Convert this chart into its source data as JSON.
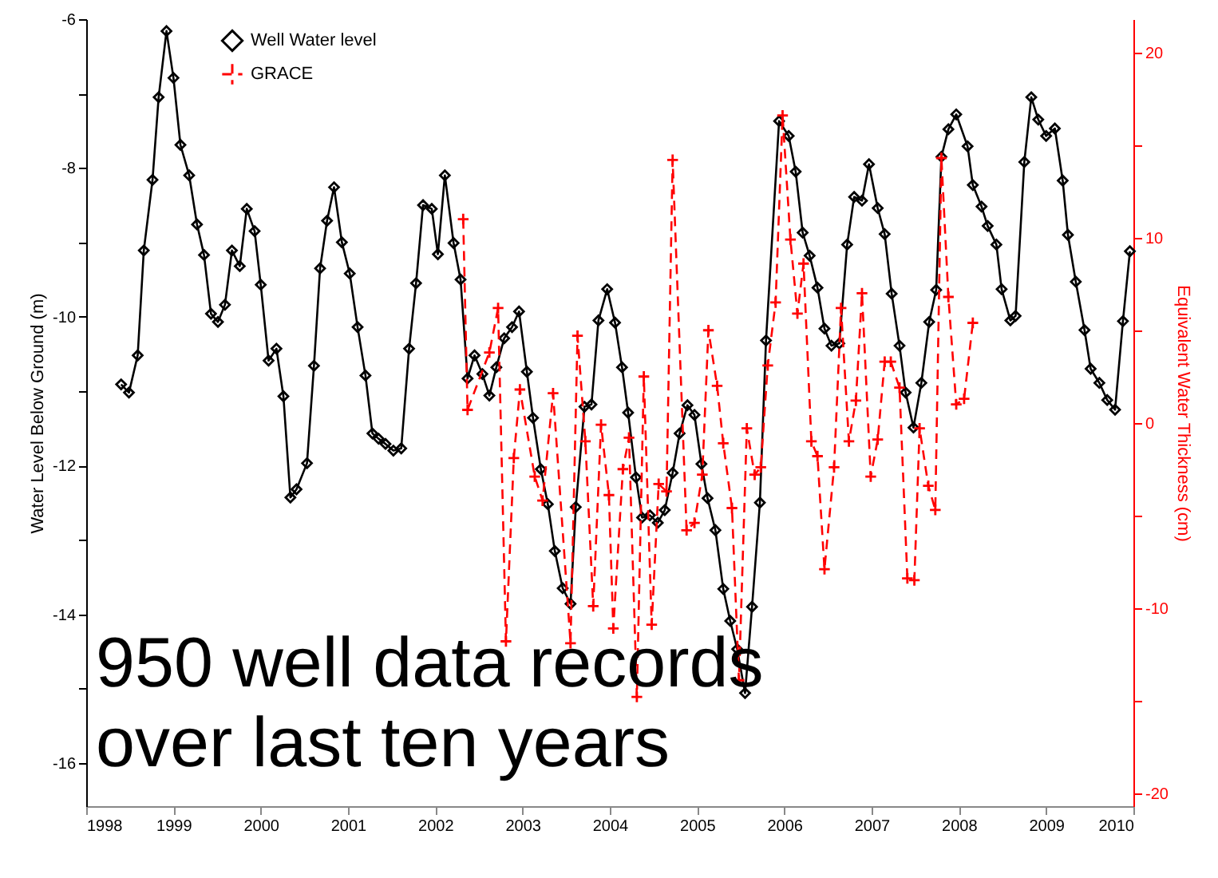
{
  "chart_data": {
    "type": "line",
    "ylabel": "Water Level Below Ground (m)",
    "y2label": "Equivalent Water Thickness (cm)",
    "xlim": [
      1998,
      2010
    ],
    "xticks": [
      1998,
      1999,
      2000,
      2001,
      2002,
      2003,
      2004,
      2005,
      2006,
      2007,
      2008,
      2009,
      2010
    ],
    "ylim": [
      -16.58,
      -6
    ],
    "yticks": [
      -6,
      {
        "value": -7,
        "label": null
      },
      -8,
      {
        "value": -9,
        "label": null
      },
      -10,
      {
        "value": -11,
        "label": null
      },
      -12,
      {
        "value": -13,
        "label": null
      },
      -14,
      {
        "value": -15,
        "label": null
      },
      -16
    ],
    "y2lim": [
      -20.7,
      21.8
    ],
    "y2ticks": [
      -20,
      {
        "value": -15,
        "label": null
      },
      -10,
      {
        "value": -5,
        "label": null
      },
      0,
      {
        "value": 5,
        "label": null
      },
      10,
      {
        "value": 15,
        "label": null
      },
      20
    ],
    "legend": "top left",
    "annotations": [
      "950 well data records",
      "over last ten years"
    ],
    "series": [
      {
        "name": "Well Water level",
        "color": "#000000",
        "marker": "diamond",
        "line_style": "solid",
        "x": [
          1998.4,
          1998.49,
          1998.59,
          1998.66,
          1998.76,
          1998.83,
          1998.92,
          1999.0,
          1999.08,
          1999.18,
          1999.27,
          1999.35,
          1999.43,
          1999.51,
          1999.59,
          1999.67,
          1999.76,
          1999.84,
          1999.93,
          2000.0,
          2000.09,
          2000.18,
          2000.26,
          2000.34,
          2000.41,
          2000.53,
          2000.61,
          2000.68,
          2000.76,
          2000.84,
          2000.93,
          2001.02,
          2001.11,
          2001.2,
          2001.28,
          2001.35,
          2001.43,
          2001.52,
          2001.61,
          2001.7,
          2001.78,
          2001.86,
          2001.96,
          2002.03,
          2002.11,
          2002.21,
          2002.29,
          2002.37,
          2002.45,
          2002.54,
          2002.62,
          2002.7,
          2002.79,
          2002.88,
          2002.96,
          2003.05,
          2003.12,
          2003.21,
          2003.29,
          2003.37,
          2003.46,
          2003.55,
          2003.61,
          2003.71,
          2003.79,
          2003.87,
          2003.97,
          2004.06,
          2004.14,
          2004.21,
          2004.3,
          2004.37,
          2004.46,
          2004.55,
          2004.63,
          2004.72,
          2004.8,
          2004.89,
          2004.97,
          2005.05,
          2005.12,
          2005.21,
          2005.3,
          2005.38,
          2005.46,
          2005.55,
          2005.63,
          2005.72,
          2005.79,
          2005.94,
          2006.05,
          2006.13,
          2006.21,
          2006.29,
          2006.38,
          2006.46,
          2006.54,
          2006.63,
          2006.72,
          2006.8,
          2006.89,
          2006.97,
          2007.07,
          2007.15,
          2007.23,
          2007.32,
          2007.39,
          2007.48,
          2007.57,
          2007.66,
          2007.74,
          2007.8,
          2007.88,
          2007.97,
          2008.1,
          2008.16,
          2008.26,
          2008.33,
          2008.43,
          2008.49,
          2008.59,
          2008.65,
          2008.75,
          2008.83,
          2008.91,
          2009.0,
          2009.1,
          2009.19,
          2009.25,
          2009.34,
          2009.44,
          2009.51,
          2009.61,
          2009.7,
          2009.79,
          2009.88,
          2009.96
        ],
        "values": [
          -10.91,
          -11.02,
          -10.52,
          -9.11,
          -8.16,
          -7.05,
          -6.16,
          -6.79,
          -7.69,
          -8.1,
          -8.76,
          -9.17,
          -9.96,
          -10.07,
          -9.84,
          -9.11,
          -9.32,
          -8.55,
          -8.85,
          -9.57,
          -10.59,
          -10.43,
          -11.07,
          -12.43,
          -12.32,
          -11.97,
          -10.66,
          -9.35,
          -8.71,
          -8.26,
          -9.0,
          -9.42,
          -10.14,
          -10.79,
          -11.57,
          -11.64,
          -11.71,
          -11.8,
          -11.77,
          -10.43,
          -9.55,
          -8.5,
          -8.55,
          -9.16,
          -8.1,
          -9.01,
          -9.5,
          -10.83,
          -10.52,
          -10.77,
          -11.06,
          -10.68,
          -10.29,
          -10.14,
          -9.93,
          -10.74,
          -11.36,
          -12.05,
          -12.52,
          -13.15,
          -13.65,
          -13.86,
          -12.56,
          -11.21,
          -11.18,
          -10.05,
          -9.63,
          -10.08,
          -10.68,
          -11.29,
          -12.16,
          -12.7,
          -12.67,
          -12.77,
          -12.6,
          -12.1,
          -11.57,
          -11.19,
          -11.32,
          -11.98,
          -12.44,
          -12.87,
          -13.66,
          -14.09,
          -14.47,
          -15.06,
          -13.9,
          -12.5,
          -10.32,
          -7.37,
          -7.57,
          -8.05,
          -8.87,
          -9.18,
          -9.61,
          -10.16,
          -10.39,
          -10.36,
          -9.03,
          -8.39,
          -8.44,
          -7.95,
          -8.54,
          -8.89,
          -9.69,
          -10.39,
          -11.02,
          -11.49,
          -10.89,
          -10.07,
          -9.64,
          -7.85,
          -7.48,
          -7.28,
          -7.71,
          -8.23,
          -8.52,
          -8.78,
          -9.03,
          -9.63,
          -10.05,
          -9.99,
          -7.92,
          -7.05,
          -7.35,
          -7.57,
          -7.47,
          -8.17,
          -8.9,
          -9.53,
          -10.18,
          -10.7,
          -10.89,
          -11.12,
          -11.25,
          -10.06,
          -9.12
        ]
      },
      {
        "name": "GRACE",
        "color": "#ff0000",
        "marker": "cross",
        "line_style": "dashed",
        "axis": "y2",
        "x": [
          2002.32,
          2002.37,
          2002.62,
          2002.72,
          2002.81,
          2002.9,
          2002.97,
          2003.14,
          2003.23,
          2003.35,
          2003.55,
          2003.63,
          2003.72,
          2003.81,
          2003.9,
          2003.99,
          2004.04,
          2004.15,
          2004.22,
          2004.31,
          2004.39,
          2004.48,
          2004.56,
          2004.65,
          2004.72,
          2004.88,
          2004.97,
          2005.06,
          2005.13,
          2005.23,
          2005.3,
          2005.4,
          2005.48,
          2005.57,
          2005.66,
          2005.73,
          2005.81,
          2005.9,
          2005.98,
          2006.07,
          2006.15,
          2006.22,
          2006.31,
          2006.38,
          2006.46,
          2006.57,
          2006.65,
          2006.74,
          2006.82,
          2006.89,
          2006.99,
          2007.07,
          2007.15,
          2007.22,
          2007.32,
          2007.41,
          2007.49,
          2007.55,
          2007.65,
          2007.73,
          2007.8,
          2007.88,
          2007.97,
          2008.06,
          2008.16
        ],
        "values": [
          11.0,
          0.7,
          3.8,
          6.2,
          -11.8,
          -1.9,
          1.8,
          -2.9,
          -4.2,
          1.6,
          -11.9,
          4.7,
          -1.0,
          -9.9,
          -0.1,
          -3.9,
          -11.1,
          -2.5,
          -0.8,
          -14.8,
          2.5,
          -10.9,
          -3.3,
          -3.7,
          14.2,
          -5.8,
          -5.4,
          -2.8,
          5.0,
          2.0,
          -1.1,
          -4.6,
          -13.9,
          -0.3,
          -2.8,
          -2.4,
          3.1,
          6.5,
          16.6,
          9.9,
          5.9,
          8.6,
          -1.0,
          -1.8,
          -7.9,
          -2.4,
          6.2,
          -1.0,
          1.2,
          7.0,
          -2.9,
          -0.9,
          3.3,
          3.3,
          1.9,
          -8.4,
          -8.5,
          -0.3,
          -3.4,
          -4.7,
          14.3,
          6.8,
          1.0,
          1.3,
          5.4
        ]
      }
    ]
  }
}
